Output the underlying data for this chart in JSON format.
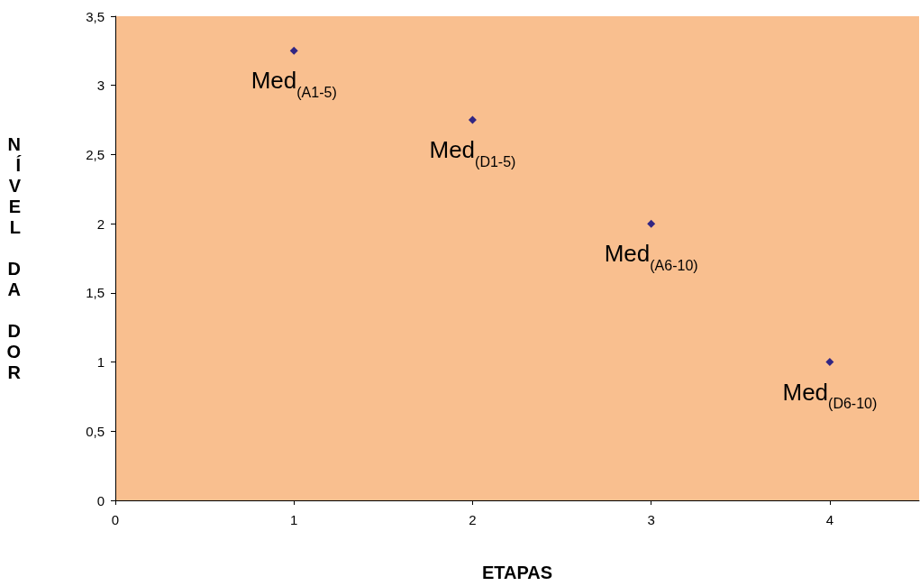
{
  "chart_data": {
    "type": "scatter",
    "xlabel": "ETAPAS",
    "ylabel": "NÍVEL DA DOR",
    "x": [
      1,
      2,
      3,
      4
    ],
    "series": [
      {
        "color": "#000080",
        "values": [
          3.25,
          2.75,
          2,
          1
        ]
      }
    ],
    "marker": "diamond",
    "grid": false,
    "xlim": [
      0,
      4.5
    ],
    "xticks": [
      0,
      1,
      2,
      3,
      4
    ],
    "ylim": [
      0,
      3.5
    ],
    "yticks": [
      0,
      {
        "value": 0.5,
        "label": "0,5"
      },
      1,
      {
        "value": 1.5,
        "label": "1,5"
      },
      2,
      {
        "value": 2.5,
        "label": "2,5"
      },
      3,
      {
        "value": 3.5,
        "label": "3,5"
      }
    ],
    "annotations": [
      {
        "text": "Med$_{(A1-5)}$",
        "x": 1,
        "y": 3.25
      },
      {
        "text": "Med$_{(D1-5)}$",
        "x": 2,
        "y": 2.75
      },
      {
        "text": "Med$_{(A6-10)}$",
        "x": 3,
        "y": 2
      },
      {
        "text": "Med$_{(D6-10)}$",
        "x": 4,
        "y": 1
      }
    ]
  }
}
